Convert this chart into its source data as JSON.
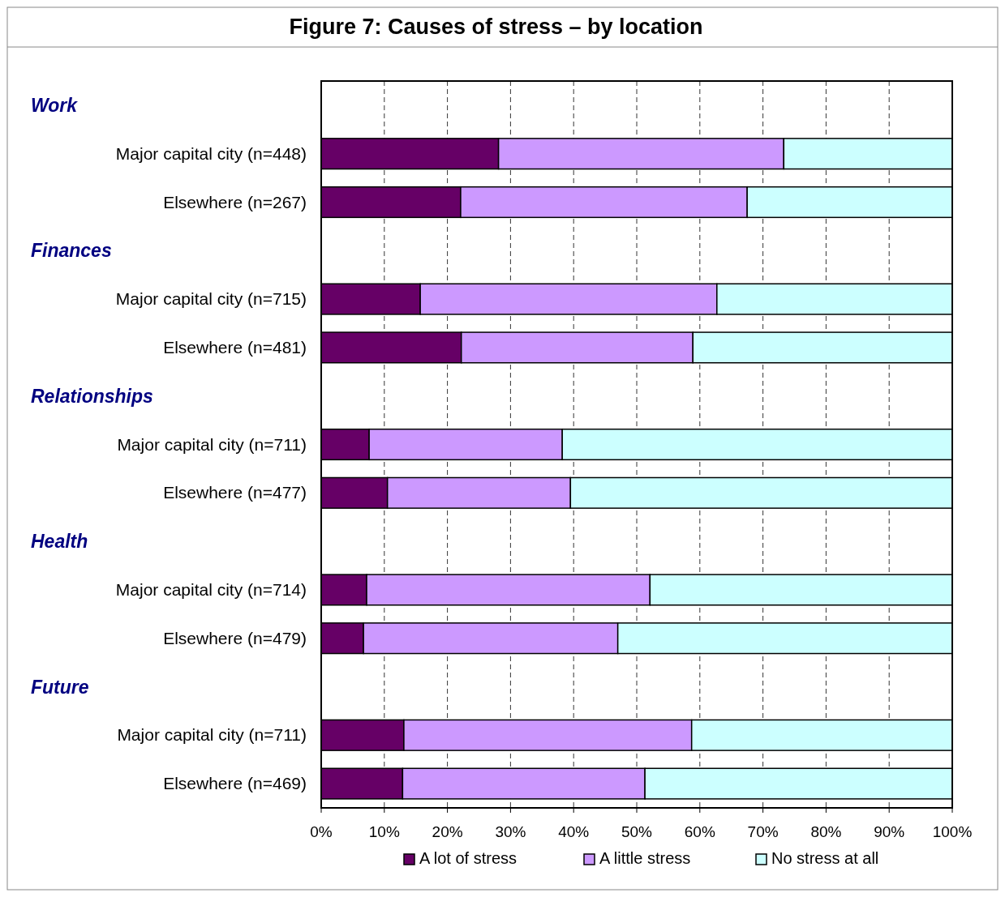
{
  "chart_data": {
    "type": "bar",
    "orientation": "horizontal",
    "stacked": true,
    "title": "Figure 7: Causes of stress – by location",
    "categories": [
      null,
      "Major capital city (n=448)",
      "Elsewhere (n=267)",
      null,
      "Major capital city (n=715)",
      "Elsewhere (n=481)",
      null,
      "Major capital city (n=711)",
      "Elsewhere (n=477)",
      null,
      "Major capital city (n=714)",
      "Elsewhere (n=479)",
      null,
      "Major capital city (n=711)",
      "Elsewhere (n=469)"
    ],
    "annotations": [
      "Work",
      "Finances",
      "Relationships",
      "Health",
      "Future"
    ],
    "series": [
      {
        "name": "A lot of stress",
        "color": "#660066",
        "values": [
          null,
          28.1,
          22.1,
          null,
          15.7,
          22.2,
          null,
          7.6,
          10.5,
          null,
          7.2,
          6.7,
          null,
          13.1,
          12.9
        ]
      },
      {
        "name": "A little stress",
        "color": "#cc99ff",
        "values": [
          null,
          45.2,
          45.4,
          null,
          47.0,
          36.7,
          null,
          30.6,
          29.0,
          null,
          44.9,
          40.3,
          null,
          45.6,
          38.4
        ]
      },
      {
        "name": "No stress at all",
        "color": "#ccffff",
        "values": [
          null,
          26.7,
          32.5,
          null,
          37.3,
          41.1,
          null,
          61.8,
          60.5,
          null,
          47.9,
          53.0,
          null,
          41.3,
          48.7
        ]
      }
    ],
    "xlim": [
      0,
      100
    ],
    "xticks": [
      {
        "value": 0,
        "label": "0%"
      },
      {
        "value": 10,
        "label": "10%"
      },
      {
        "value": 20,
        "label": "20%"
      },
      {
        "value": 30,
        "label": "30%"
      },
      {
        "value": 40,
        "label": "40%"
      },
      {
        "value": 50,
        "label": "50%"
      },
      {
        "value": 60,
        "label": "60%"
      },
      {
        "value": 70,
        "label": "70%"
      },
      {
        "value": 80,
        "label": "80%"
      },
      {
        "value": 90,
        "label": "90%"
      },
      {
        "value": 100,
        "label": "100%"
      }
    ],
    "grid": "x",
    "legend": "bottom"
  }
}
